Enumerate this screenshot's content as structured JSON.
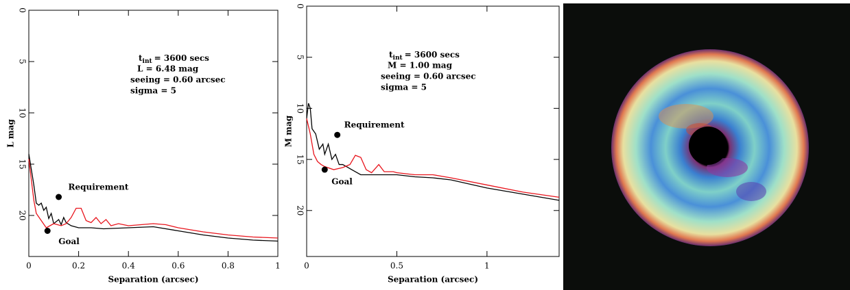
{
  "chart_data": [
    {
      "type": "line",
      "xlabel": "Separation (arcsec)",
      "ylabel": "L mag",
      "xlim": [
        0,
        1
      ],
      "ylim": [
        24,
        0
      ],
      "xticks": [
        0,
        0.2,
        0.4,
        0.6,
        0.8,
        1
      ],
      "yticks": [
        0,
        5,
        10,
        15,
        20
      ],
      "annotation_symbol": "t",
      "annotation_subscript": "int",
      "annotation_lines": [
        "=  3600 secs",
        "L =  6.48 mag",
        "seeing = 0.60 arcsec",
        "sigma = 5"
      ],
      "points": [
        {
          "label": "Requirement",
          "x": 0.12,
          "y": 18.2
        },
        {
          "label": "Goal",
          "x": 0.075,
          "y": 21.5
        }
      ],
      "series": [
        {
          "color": "#000000",
          "x": [
            0,
            0.01,
            0.02,
            0.03,
            0.04,
            0.05,
            0.06,
            0.07,
            0.08,
            0.09,
            0.1,
            0.12,
            0.13,
            0.14,
            0.15,
            0.17,
            0.2,
            0.25,
            0.3,
            0.4,
            0.5,
            0.6,
            0.7,
            0.8,
            0.9,
            1.0
          ],
          "values": [
            14,
            15.5,
            17,
            18.8,
            19,
            18.8,
            19.5,
            19.2,
            20.3,
            19.8,
            20.8,
            20.4,
            20.9,
            20.2,
            20.7,
            21,
            21.2,
            21.2,
            21.3,
            21.2,
            21.1,
            21.5,
            21.9,
            22.2,
            22.4,
            22.5
          ]
        },
        {
          "color": "#e8141c",
          "x": [
            0,
            0.01,
            0.02,
            0.03,
            0.05,
            0.07,
            0.1,
            0.13,
            0.15,
            0.17,
            0.19,
            0.21,
            0.23,
            0.25,
            0.27,
            0.29,
            0.31,
            0.33,
            0.36,
            0.4,
            0.45,
            0.5,
            0.55,
            0.6,
            0.7,
            0.8,
            0.9,
            1.0
          ],
          "values": [
            14.5,
            16.5,
            18.5,
            19.8,
            20.5,
            21.2,
            20.8,
            21,
            20.8,
            20.2,
            19.3,
            19.3,
            20.5,
            20.7,
            20.2,
            20.8,
            20.4,
            21,
            20.8,
            21,
            20.9,
            20.8,
            20.9,
            21.2,
            21.6,
            21.9,
            22.1,
            22.2
          ]
        }
      ]
    },
    {
      "type": "line",
      "xlabel": "Separation (arcsec)",
      "ylabel": "M mag",
      "xlim": [
        0,
        1.4
      ],
      "ylim": [
        24.5,
        0
      ],
      "xticks": [
        0,
        0.5,
        1
      ],
      "yticks": [
        0,
        5,
        10,
        15,
        20
      ],
      "annotation_symbol": "t",
      "annotation_subscript": "int",
      "annotation_lines": [
        "=  3600 secs",
        "M =  1.00 mag",
        "seeing = 0.60 arcsec",
        "sigma = 5"
      ],
      "points": [
        {
          "label": "Requirement",
          "x": 0.17,
          "y": 12.6
        },
        {
          "label": "Goal",
          "x": 0.1,
          "y": 16
        }
      ],
      "series": [
        {
          "color": "#000000",
          "x": [
            0,
            0.01,
            0.02,
            0.03,
            0.05,
            0.07,
            0.09,
            0.1,
            0.12,
            0.14,
            0.16,
            0.18,
            0.2,
            0.25,
            0.3,
            0.4,
            0.5,
            0.6,
            0.7,
            0.8,
            1.0,
            1.2,
            1.4
          ],
          "values": [
            11,
            9.5,
            10,
            12,
            12.5,
            14,
            13.5,
            14.5,
            13.5,
            15,
            14.5,
            15.5,
            15.5,
            16,
            16.5,
            16.5,
            16.5,
            16.7,
            16.8,
            17,
            17.8,
            18.4,
            19
          ]
        },
        {
          "color": "#e8141c",
          "x": [
            0,
            0.02,
            0.04,
            0.06,
            0.08,
            0.1,
            0.15,
            0.2,
            0.24,
            0.27,
            0.3,
            0.33,
            0.36,
            0.4,
            0.43,
            0.48,
            0.5,
            0.6,
            0.7,
            0.8,
            1.0,
            1.2,
            1.4
          ],
          "values": [
            11,
            12.5,
            14.5,
            15.2,
            15.5,
            15.7,
            16,
            15.8,
            15.5,
            14.6,
            14.8,
            16,
            16.3,
            15.5,
            16.2,
            16.2,
            16.3,
            16.5,
            16.5,
            16.8,
            17.5,
            18.2,
            18.7
          ]
        }
      ]
    }
  ]
}
